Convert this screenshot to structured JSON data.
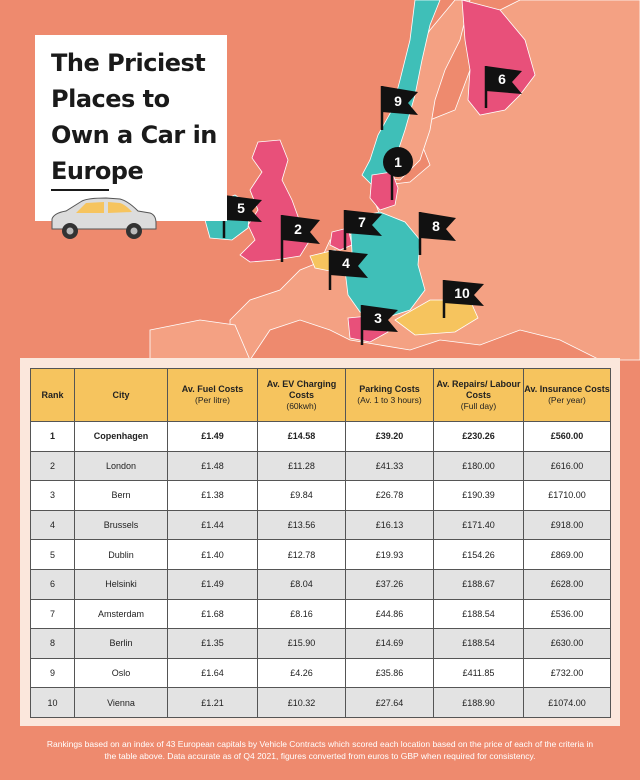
{
  "title": "The Priciest Places to Own a Car in Europe",
  "colors": {
    "background": "#ee8a6e",
    "land": "#f4a183",
    "pink": "#e8507a",
    "teal": "#3fbfb8",
    "yellow": "#f6c45e",
    "header": "#f6c45e"
  },
  "map_flags": [
    "1",
    "2",
    "3",
    "4",
    "5",
    "6",
    "7",
    "8",
    "9",
    "10"
  ],
  "table": {
    "headers": [
      {
        "label": "Rank",
        "sub": ""
      },
      {
        "label": "City",
        "sub": ""
      },
      {
        "label": "Av. Fuel Costs",
        "sub": "(Per litre)"
      },
      {
        "label": "Av. EV Charging Costs",
        "sub": "(60kwh)"
      },
      {
        "label": "Parking Costs",
        "sub": "(Av. 1 to 3 hours)"
      },
      {
        "label": "Av. Repairs/ Labour Costs",
        "sub": "(Full day)"
      },
      {
        "label": "Av. Insurance Costs",
        "sub": "(Per year)"
      }
    ],
    "rows": [
      [
        "1",
        "Copenhagen",
        "£1.49",
        "£14.58",
        "£39.20",
        "£230.26",
        "£560.00"
      ],
      [
        "2",
        "London",
        "£1.48",
        "£11.28",
        "£41.33",
        "£180.00",
        "£616.00"
      ],
      [
        "3",
        "Bern",
        "£1.38",
        "£9.84",
        "£26.78",
        "£190.39",
        "£1710.00"
      ],
      [
        "4",
        "Brussels",
        "£1.44",
        "£13.56",
        "£16.13",
        "£171.40",
        "£918.00"
      ],
      [
        "5",
        "Dublin",
        "£1.40",
        "£12.78",
        "£19.93",
        "£154.26",
        "£869.00"
      ],
      [
        "6",
        "Helsinki",
        "£1.49",
        "£8.04",
        "£37.26",
        "£188.67",
        "£628.00"
      ],
      [
        "7",
        "Amsterdam",
        "£1.68",
        "£8.16",
        "£44.86",
        "£188.54",
        "£536.00"
      ],
      [
        "8",
        "Berlin",
        "£1.35",
        "£15.90",
        "£14.69",
        "£188.54",
        "£630.00"
      ],
      [
        "9",
        "Oslo",
        "£1.64",
        "£4.26",
        "£35.86",
        "£411.85",
        "£732.00"
      ],
      [
        "10",
        "Vienna",
        "£1.21",
        "£10.32",
        "£27.64",
        "£188.90",
        "£1074.00"
      ]
    ]
  },
  "footnote": "Rankings based on an index of 43 European capitals by Vehicle Contracts which scored each location based on the price of each of the criteria in the table above. Data accurate as of Q4 2021, figures converted from euros to GBP when required for consistency."
}
